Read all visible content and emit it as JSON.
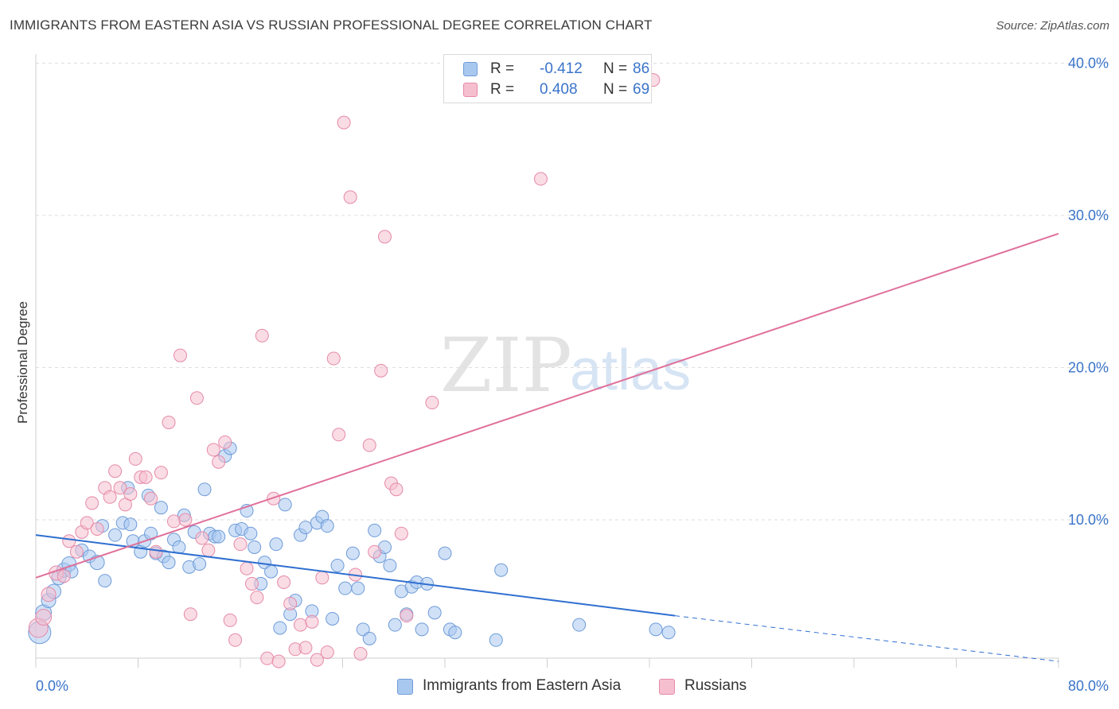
{
  "header": {
    "title": "IMMIGRANTS FROM EASTERN ASIA VS RUSSIAN PROFESSIONAL DEGREE CORRELATION CHART",
    "source": "Source: ZipAtlas.com"
  },
  "stats": {
    "rows": [
      {
        "r_label": "R =",
        "r_value": "-0.412",
        "n_label": "N =",
        "n_value": "86",
        "color": "#a9c8f0",
        "border": "#6f9bd8"
      },
      {
        "r_label": "R =",
        "r_value": "0.408",
        "n_label": "N =",
        "n_value": "69",
        "color": "#f6bfd0",
        "border": "#e58aa8"
      }
    ]
  },
  "legend": {
    "items": [
      {
        "label": "Immigrants from Eastern Asia",
        "color": "#a9c8f0",
        "border": "#6f9bd8"
      },
      {
        "label": "Russians",
        "color": "#f6bfd0",
        "border": "#e58aa8"
      }
    ]
  },
  "watermark": {
    "zip": "ZIP",
    "atlas": "atlas"
  },
  "chart_data": {
    "type": "scatter",
    "title": "IMMIGRANTS FROM EASTERN ASIA VS RUSSIAN PROFESSIONAL DEGREE CORRELATION CHART",
    "xlabel": "",
    "ylabel": "Professional Degree",
    "xlim": [
      0,
      80
    ],
    "ylim": [
      0,
      42
    ],
    "x_tick_labels": [
      "0.0%",
      "80.0%"
    ],
    "y_ticks": [
      10,
      20,
      30,
      40
    ],
    "y_tick_labels": [
      "10.0%",
      "20.0%",
      "30.0%",
      "40.0%"
    ],
    "grid": true,
    "legend_position": "bottom",
    "colors": {
      "blue": "#a9c8f0",
      "blue_edge": "#6f9bd8",
      "blue_line": "#2f6fd0",
      "pink": "#f6bfd0",
      "pink_edge": "#e58aa8",
      "pink_line": "#e0709a"
    },
    "series": [
      {
        "name": "Immigrants from Eastern Asia",
        "r": -0.412,
        "n": 86,
        "trend": {
          "x0": 0,
          "y0": 9.0,
          "x1": 50,
          "y1": 3.7,
          "dash_x1": 80,
          "dash_y1": 0.7
        },
        "points": [
          [
            0.3,
            2.6,
            14
          ],
          [
            0.6,
            3.9,
            10
          ],
          [
            1.0,
            4.7,
            9
          ],
          [
            1.4,
            5.3,
            9
          ],
          [
            1.8,
            6.2,
            9
          ],
          [
            2.2,
            6.7,
            9
          ],
          [
            2.6,
            7.1,
            9
          ],
          [
            2.8,
            6.6,
            8
          ],
          [
            3.6,
            8.0,
            8
          ],
          [
            4.2,
            7.6,
            8
          ],
          [
            4.8,
            7.2,
            9
          ],
          [
            5.4,
            6.0,
            8
          ],
          [
            5.2,
            9.6,
            8
          ],
          [
            6.2,
            9.0,
            8
          ],
          [
            6.8,
            9.8,
            8
          ],
          [
            7.2,
            12.1,
            8
          ],
          [
            7.4,
            9.7,
            8
          ],
          [
            7.6,
            8.6,
            8
          ],
          [
            8.2,
            7.9,
            8
          ],
          [
            8.5,
            8.6,
            8
          ],
          [
            8.8,
            11.6,
            8
          ],
          [
            9.0,
            9.1,
            8
          ],
          [
            9.4,
            7.8,
            8
          ],
          [
            9.8,
            10.8,
            8
          ],
          [
            10.0,
            7.6,
            8
          ],
          [
            10.4,
            7.2,
            8
          ],
          [
            10.8,
            8.7,
            8
          ],
          [
            11.2,
            8.2,
            8
          ],
          [
            11.6,
            10.3,
            8
          ],
          [
            12.0,
            6.9,
            8
          ],
          [
            12.4,
            9.2,
            8
          ],
          [
            12.8,
            7.1,
            8
          ],
          [
            13.2,
            12.0,
            8
          ],
          [
            13.6,
            9.1,
            8
          ],
          [
            14.0,
            8.9,
            8
          ],
          [
            14.3,
            8.9,
            8
          ],
          [
            14.8,
            14.2,
            8
          ],
          [
            15.2,
            14.7,
            8
          ],
          [
            15.6,
            9.3,
            8
          ],
          [
            16.1,
            9.4,
            8
          ],
          [
            16.5,
            10.6,
            8
          ],
          [
            16.8,
            9.1,
            8
          ],
          [
            17.1,
            8.2,
            8
          ],
          [
            17.6,
            5.8,
            8
          ],
          [
            17.9,
            7.2,
            8
          ],
          [
            18.4,
            6.6,
            8
          ],
          [
            18.8,
            8.4,
            8
          ],
          [
            19.1,
            2.9,
            8
          ],
          [
            19.5,
            11.0,
            8
          ],
          [
            19.9,
            3.8,
            8
          ],
          [
            20.3,
            4.7,
            8
          ],
          [
            20.7,
            9.0,
            8
          ],
          [
            21.1,
            9.5,
            8
          ],
          [
            21.6,
            4.0,
            8
          ],
          [
            22.0,
            9.8,
            8
          ],
          [
            22.4,
            10.2,
            8
          ],
          [
            22.8,
            9.6,
            8
          ],
          [
            23.2,
            3.5,
            8
          ],
          [
            23.6,
            7.0,
            8
          ],
          [
            24.2,
            5.5,
            8
          ],
          [
            24.8,
            7.8,
            8
          ],
          [
            25.2,
            5.5,
            8
          ],
          [
            25.6,
            2.8,
            8
          ],
          [
            26.1,
            2.2,
            8
          ],
          [
            26.5,
            9.3,
            8
          ],
          [
            26.9,
            7.6,
            8
          ],
          [
            27.3,
            8.2,
            8
          ],
          [
            27.7,
            7.0,
            8
          ],
          [
            28.1,
            3.1,
            8
          ],
          [
            28.6,
            5.3,
            8
          ],
          [
            29.0,
            3.8,
            8
          ],
          [
            29.4,
            5.6,
            8
          ],
          [
            29.8,
            5.9,
            8
          ],
          [
            30.2,
            2.8,
            8
          ],
          [
            30.6,
            5.8,
            8
          ],
          [
            31.2,
            3.9,
            8
          ],
          [
            32.0,
            7.8,
            8
          ],
          [
            32.4,
            2.8,
            8
          ],
          [
            32.8,
            2.6,
            8
          ],
          [
            36.0,
            2.1,
            8
          ],
          [
            36.4,
            6.7,
            8
          ],
          [
            42.5,
            3.1,
            8
          ],
          [
            48.5,
            2.8,
            8
          ],
          [
            49.5,
            2.6,
            8
          ]
        ]
      },
      {
        "name": "Russians",
        "r": 0.408,
        "n": 69,
        "trend": {
          "x0": 0,
          "y0": 6.2,
          "x1": 80,
          "y1": 28.8
        },
        "points": [
          [
            0.2,
            2.9,
            12
          ],
          [
            0.6,
            3.6,
            10
          ],
          [
            1.0,
            5.1,
            9
          ],
          [
            1.6,
            6.5,
            9
          ],
          [
            2.2,
            6.3,
            8
          ],
          [
            2.6,
            8.6,
            8
          ],
          [
            3.2,
            7.9,
            8
          ],
          [
            3.6,
            9.2,
            8
          ],
          [
            4.0,
            9.8,
            8
          ],
          [
            4.4,
            11.1,
            8
          ],
          [
            4.8,
            9.4,
            8
          ],
          [
            5.4,
            12.1,
            8
          ],
          [
            5.8,
            11.5,
            8
          ],
          [
            6.2,
            13.2,
            8
          ],
          [
            6.6,
            12.1,
            8
          ],
          [
            7.0,
            11.0,
            8
          ],
          [
            7.4,
            11.7,
            8
          ],
          [
            7.8,
            14.0,
            8
          ],
          [
            8.2,
            12.8,
            8
          ],
          [
            8.6,
            12.8,
            8
          ],
          [
            9.0,
            11.4,
            8
          ],
          [
            9.4,
            7.9,
            8
          ],
          [
            9.8,
            13.1,
            8
          ],
          [
            10.4,
            16.4,
            8
          ],
          [
            10.8,
            9.9,
            8
          ],
          [
            11.3,
            20.8,
            8
          ],
          [
            11.7,
            10.0,
            8
          ],
          [
            12.1,
            3.8,
            8
          ],
          [
            12.6,
            18.0,
            8
          ],
          [
            13.0,
            8.8,
            8
          ],
          [
            13.5,
            8.0,
            8
          ],
          [
            13.9,
            14.6,
            8
          ],
          [
            14.3,
            13.8,
            8
          ],
          [
            14.8,
            15.1,
            8
          ],
          [
            15.2,
            3.4,
            8
          ],
          [
            15.6,
            2.1,
            8
          ],
          [
            16.0,
            8.4,
            8
          ],
          [
            16.5,
            6.8,
            8
          ],
          [
            16.9,
            5.8,
            8
          ],
          [
            17.3,
            4.9,
            8
          ],
          [
            17.7,
            22.1,
            8
          ],
          [
            18.1,
            0.9,
            8
          ],
          [
            18.6,
            11.4,
            8
          ],
          [
            19.0,
            0.7,
            8
          ],
          [
            19.4,
            5.9,
            8
          ],
          [
            19.9,
            4.5,
            8
          ],
          [
            20.3,
            1.5,
            8
          ],
          [
            20.7,
            3.1,
            8
          ],
          [
            21.1,
            1.6,
            8
          ],
          [
            21.6,
            3.3,
            8
          ],
          [
            22.0,
            0.8,
            8
          ],
          [
            22.4,
            6.2,
            8
          ],
          [
            22.8,
            1.3,
            8
          ],
          [
            23.3,
            20.6,
            8
          ],
          [
            23.7,
            15.6,
            8
          ],
          [
            24.1,
            36.1,
            8
          ],
          [
            24.6,
            31.2,
            8
          ],
          [
            25.0,
            6.4,
            8
          ],
          [
            25.4,
            1.2,
            8
          ],
          [
            26.1,
            14.9,
            8
          ],
          [
            26.5,
            7.9,
            8
          ],
          [
            27.0,
            19.8,
            8
          ],
          [
            27.3,
            28.6,
            8
          ],
          [
            27.8,
            12.4,
            8
          ],
          [
            28.2,
            12.0,
            8
          ],
          [
            28.6,
            9.1,
            8
          ],
          [
            29.0,
            3.7,
            8
          ],
          [
            31.0,
            17.7,
            8
          ],
          [
            39.5,
            32.4,
            8
          ],
          [
            48.3,
            38.9,
            8
          ]
        ]
      }
    ]
  }
}
